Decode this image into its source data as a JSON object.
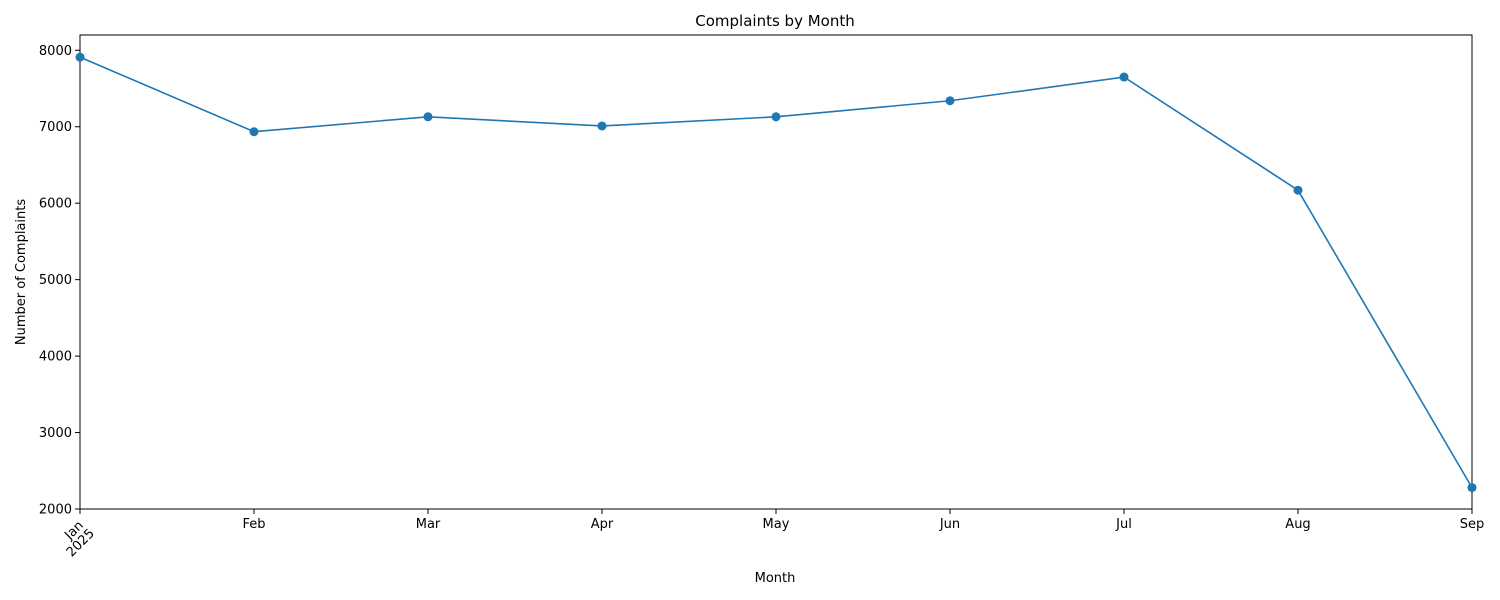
{
  "chart_data": {
    "type": "line",
    "title": "Complaints by Month",
    "xlabel": "Month",
    "ylabel": "Number of Complaints",
    "categories": [
      "Jan",
      "Feb",
      "Mar",
      "Apr",
      "May",
      "Jun",
      "Jul",
      "Aug",
      "Sep"
    ],
    "year_label": "2025",
    "series": [
      {
        "name": "Complaints",
        "values": [
          7910,
          6935,
          7130,
          7010,
          7130,
          7340,
          7650,
          6170,
          2280
        ],
        "color": "#1f77b4"
      }
    ],
    "ylim": [
      2000,
      8200
    ],
    "yticks": [
      2000,
      3000,
      4000,
      5000,
      6000,
      7000,
      8000
    ],
    "grid": false,
    "legend": "none"
  }
}
